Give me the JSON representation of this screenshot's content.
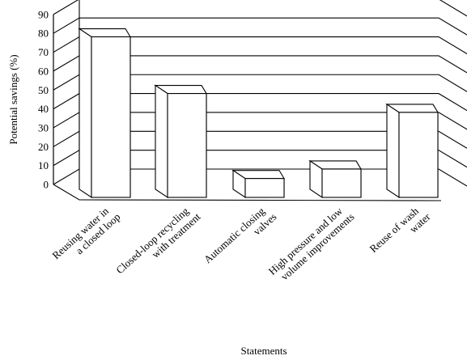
{
  "chart_data": {
    "type": "bar",
    "ylabel": "Potential savings (%)",
    "xlabel": "Statements",
    "ylim": [
      0,
      90
    ],
    "yticks": [
      0,
      10,
      20,
      30,
      40,
      50,
      60,
      70,
      80,
      90
    ],
    "grid": true,
    "three_d": true,
    "categories": [
      [
        "Reusing water in",
        "a closed loop"
      ],
      [
        "Closed-loop recycling",
        "with treatment"
      ],
      [
        "Automatic closing",
        "valves"
      ],
      [
        "High pressure and low",
        "volume improvements"
      ],
      [
        "Reuse of wash",
        "water"
      ]
    ],
    "values": [
      85,
      55,
      10,
      15,
      45
    ],
    "colors": {
      "bar_fill": "#ffffff",
      "stroke": "#000000"
    }
  }
}
